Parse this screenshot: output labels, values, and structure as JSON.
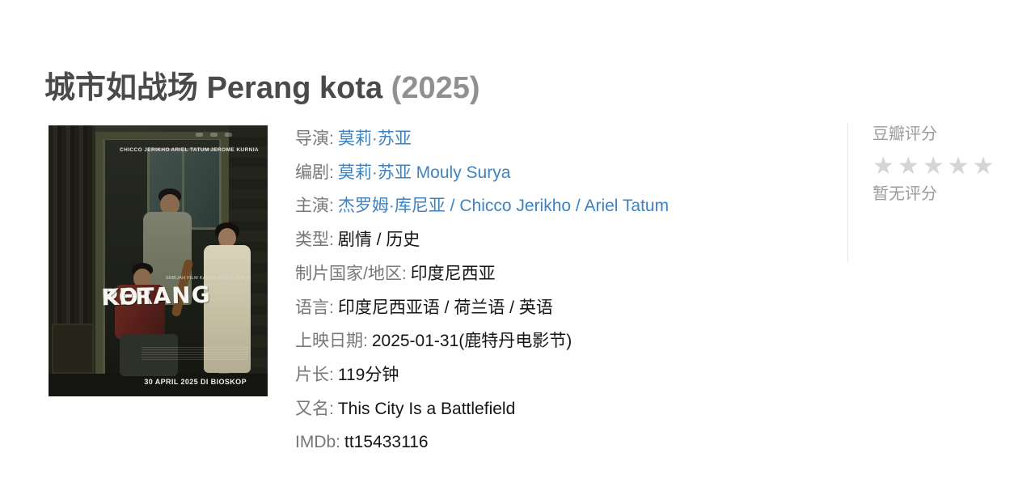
{
  "page": {
    "title_zh": "城市如战场",
    "title_latin": "Perang kota",
    "title_year": "(2025)"
  },
  "colors": {
    "link_blue": "#3e82c0",
    "label_gray": "#777777",
    "value_black": "#151515",
    "title_gray": "#4a4a4a",
    "year_gray": "#909090",
    "star_gray": "#d5d5d5",
    "muted_gray": "#9b9b9b"
  },
  "poster": {
    "cast_name_1": "CHICCO JERIKHO",
    "cast_name_2": "ARIEL TATUM",
    "cast_name_3": "JEROME KURNIA",
    "tagline": "SEBUAH FILM KARYA MOULY SURYA",
    "title_line_1": "PERANG",
    "title_line_2": "KOTA",
    "release_line": "30 APRIL 2025 DI BIOSKOP"
  },
  "info": {
    "link_separator": " / ",
    "rows": [
      {
        "label": "导演:",
        "links": [
          "莫莉·苏亚"
        ]
      },
      {
        "label": "编剧:",
        "links": [
          "莫莉·苏亚 Mouly Surya"
        ]
      },
      {
        "label": "主演:",
        "links": [
          "杰罗姆·库尼亚",
          "Chicco Jerikho",
          "Ariel Tatum"
        ]
      },
      {
        "label": "类型:",
        "value": "剧情 / 历史"
      },
      {
        "label": "制片国家/地区:",
        "value": "印度尼西亚"
      },
      {
        "label": "语言:",
        "value": "印度尼西亚语 / 荷兰语 / 英语"
      },
      {
        "label": "上映日期:",
        "value": "2025-01-31(鹿特丹电影节)"
      },
      {
        "label": "片长:",
        "value": "119分钟"
      },
      {
        "label": "又名:",
        "value": "This City Is a Battlefield"
      },
      {
        "label": "IMDb:",
        "value": "tt15433116"
      }
    ]
  },
  "rating": {
    "title": "豆瓣评分",
    "stars": "★★★★★",
    "no_rating": "暂无评分"
  }
}
